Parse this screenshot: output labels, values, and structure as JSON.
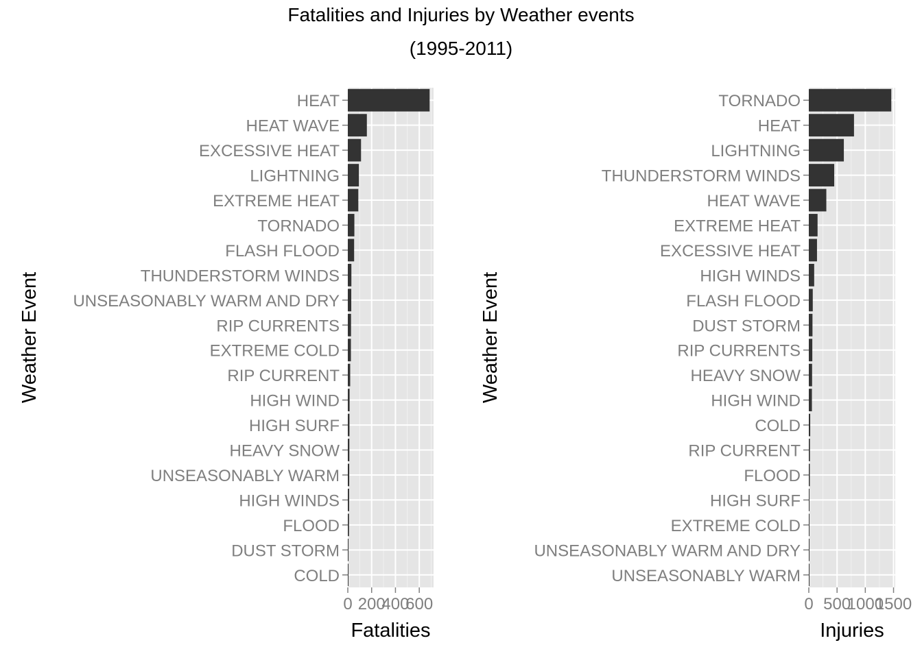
{
  "figure": {
    "title_line1": "Fatalities and Injuries by Weather events",
    "title_line2": "(1995-2011)"
  },
  "chart_data": [
    {
      "type": "bar",
      "orientation": "horizontal",
      "categories": [
        "HEAT",
        "HEAT WAVE",
        "EXCESSIVE HEAT",
        "LIGHTNING",
        "EXTREME HEAT",
        "TORNADO",
        "FLASH FLOOD",
        "THUNDERSTORM WINDS",
        "UNSEASONABLY WARM AND DRY",
        "RIP CURRENTS",
        "EXTREME COLD",
        "RIP CURRENT",
        "HIGH WIND",
        "HIGH SURF",
        "HEAVY SNOW",
        "UNSEASONABLY WARM",
        "HIGH WINDS",
        "FLOOD",
        "DUST STORM",
        "COLD"
      ],
      "values": [
        687,
        160,
        111,
        93,
        88,
        55,
        53,
        30,
        29,
        27,
        26,
        20,
        15,
        14,
        13,
        12,
        11,
        10,
        6,
        5
      ],
      "xlabel": "Fatalities",
      "ylabel": "Weather Event",
      "xlim": [
        0,
        720
      ],
      "xticks": [
        0,
        200,
        400,
        600
      ],
      "xtick_labels": [
        "0",
        "200",
        "400",
        "600"
      ],
      "bar_color": "#333333",
      "panel_color": "#e5e5e5",
      "grid": true
    },
    {
      "type": "bar",
      "orientation": "horizontal",
      "categories": [
        "TORNADO",
        "HEAT",
        "LIGHTNING",
        "THUNDERSTORM WINDS",
        "HEAT WAVE",
        "EXTREME HEAT",
        "EXCESSIVE HEAT",
        "HIGH WINDS",
        "FLASH FLOOD",
        "DUST STORM",
        "RIP CURRENTS",
        "HEAVY SNOW",
        "HIGH WIND",
        "COLD",
        "RIP CURRENT",
        "FLOOD",
        "HIGH SURF",
        "EXTREME COLD",
        "UNSEASONABLY WARM AND DRY",
        "UNSEASONABLY WARM"
      ],
      "values": [
        1460,
        800,
        620,
        450,
        310,
        155,
        145,
        95,
        70,
        65,
        62,
        58,
        55,
        25,
        20,
        18,
        5,
        4,
        3,
        2
      ],
      "xlabel": "Injuries",
      "ylabel": "Weather Event",
      "xlim": [
        0,
        1530
      ],
      "xticks": [
        0,
        500,
        1000,
        1500
      ],
      "xtick_labels": [
        "0",
        "500",
        "1000",
        "1500"
      ],
      "bar_color": "#333333",
      "panel_color": "#e5e5e5",
      "grid": true
    }
  ]
}
